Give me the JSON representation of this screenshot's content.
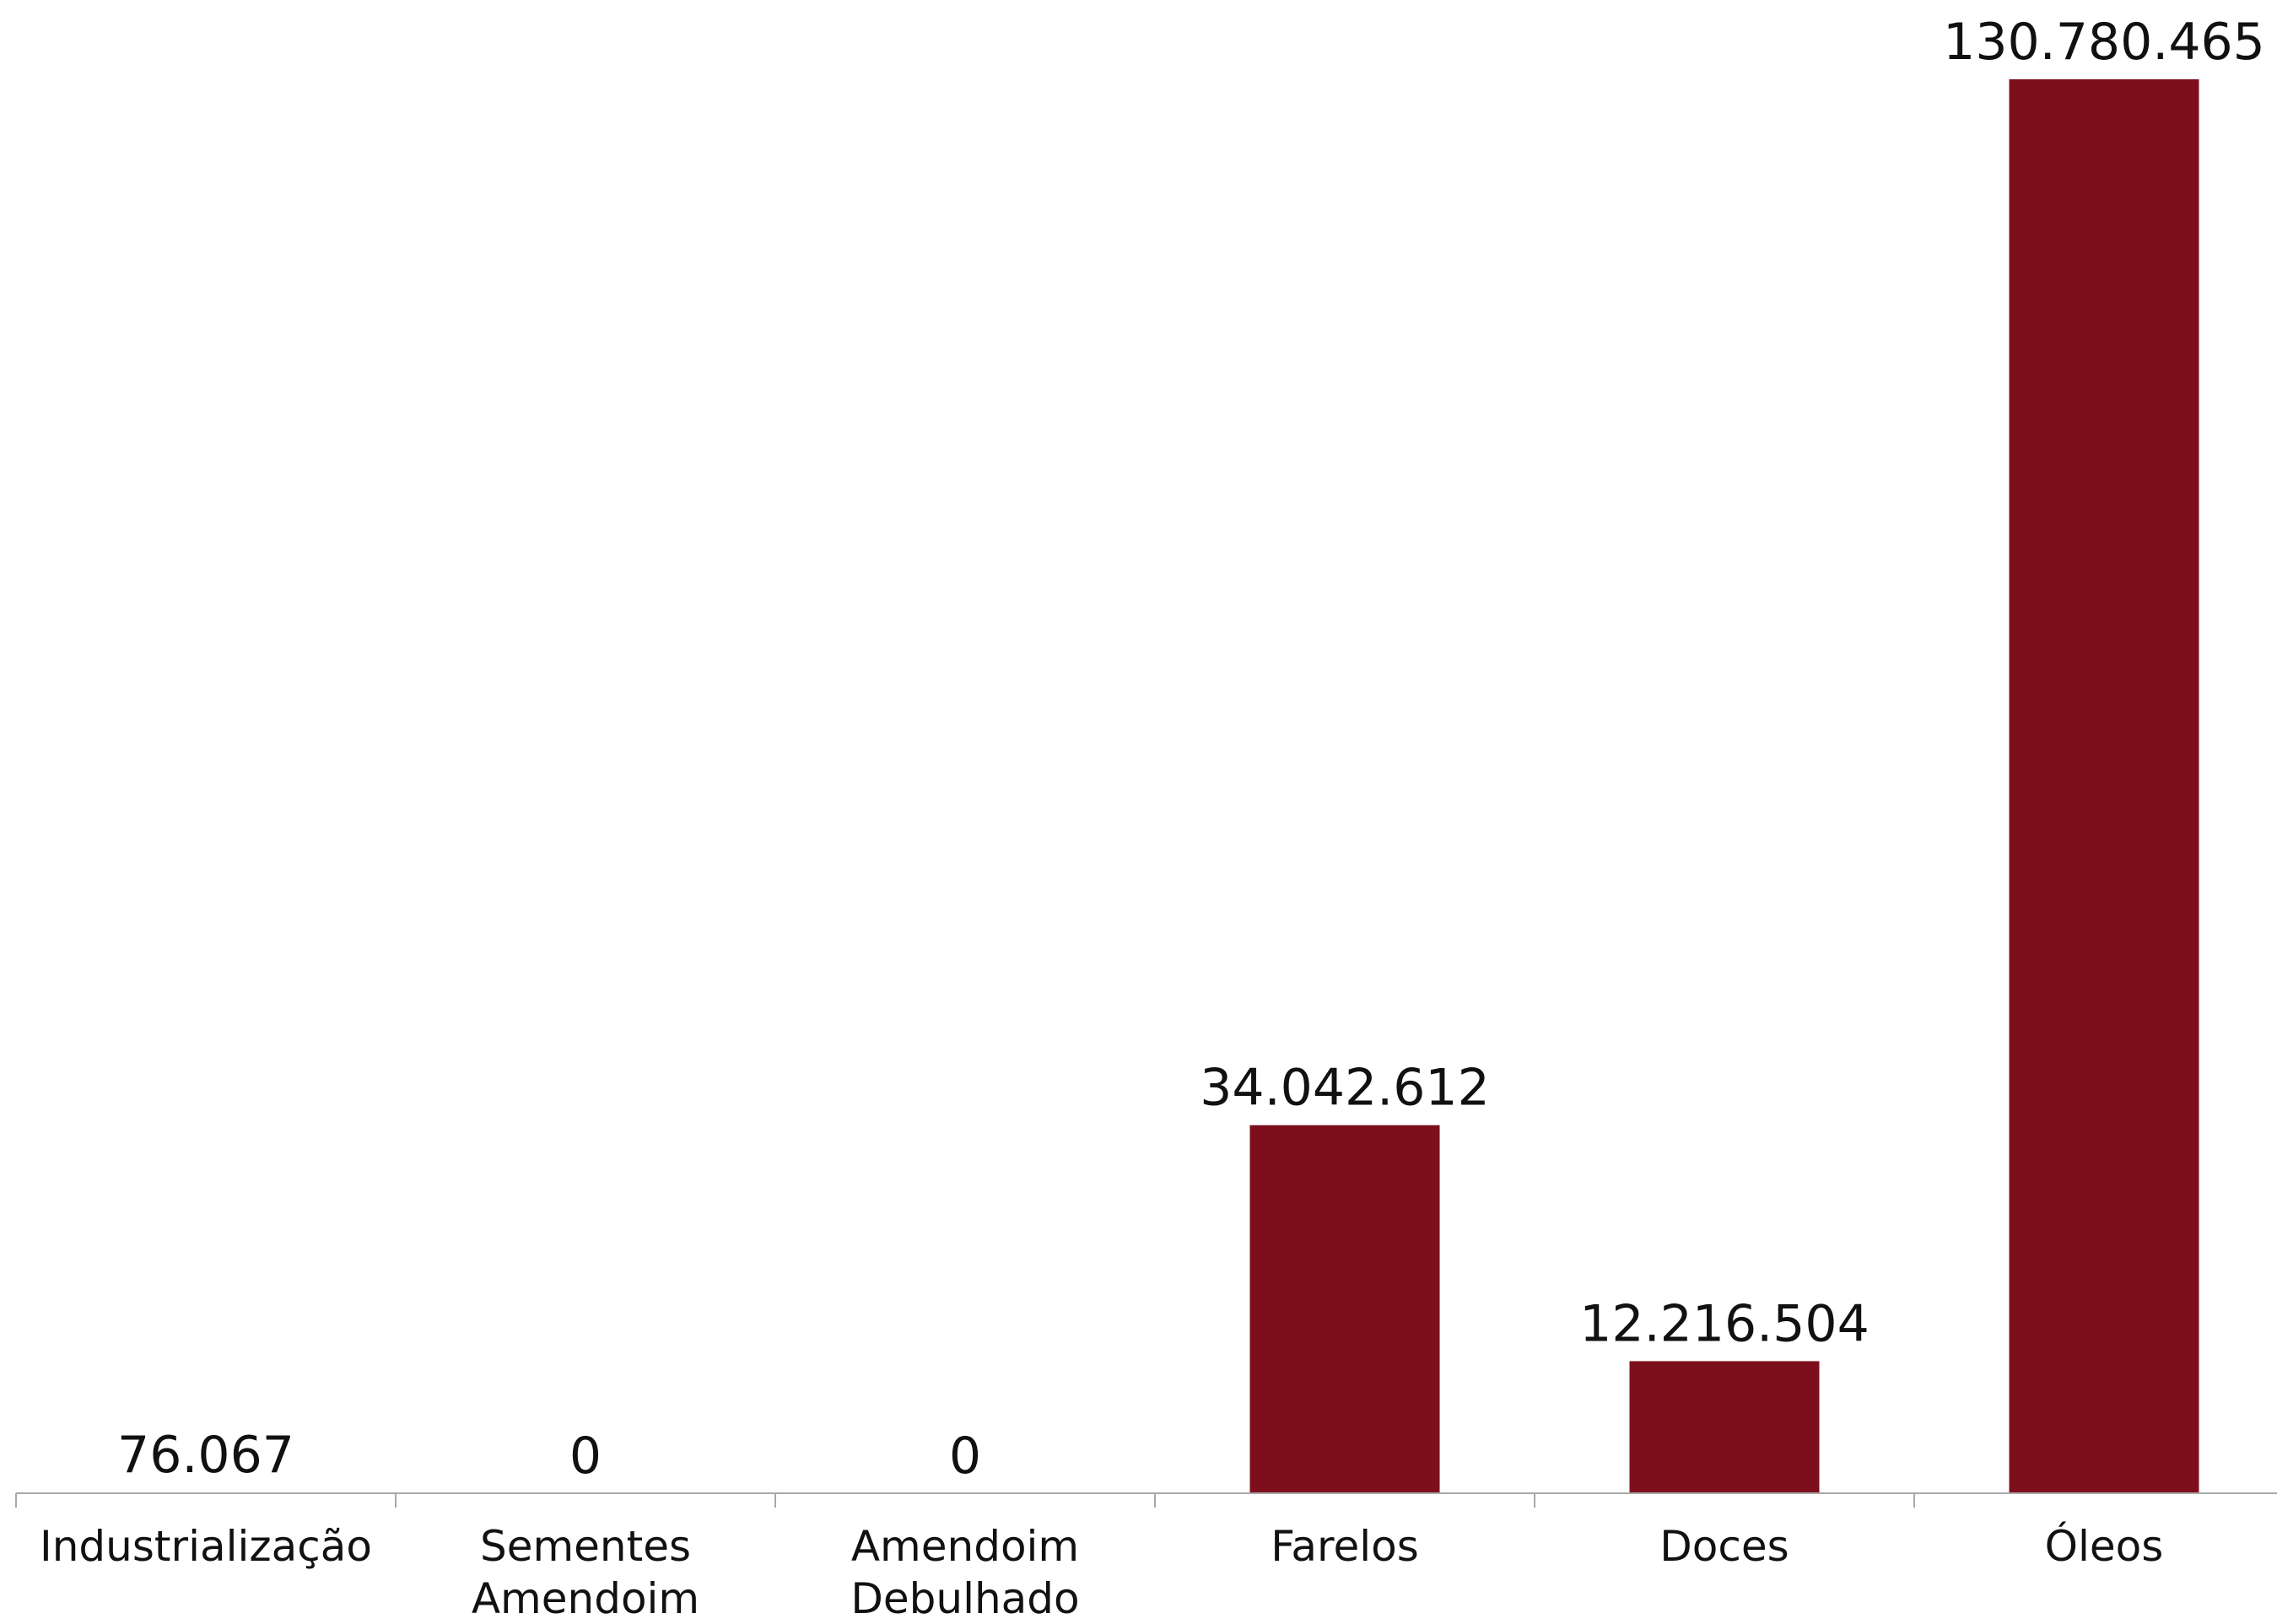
{
  "chart_data": {
    "type": "bar",
    "categories": [
      [
        "Industrialização"
      ],
      [
        "Sementes",
        "Amendoim"
      ],
      [
        "Amendoim",
        "Debulhado"
      ],
      [
        "Farelos"
      ],
      [
        "Doces"
      ],
      [
        "Óleos"
      ]
    ],
    "values": [
      76067,
      0,
      0,
      34042612,
      12216504,
      130780465
    ],
    "value_labels": [
      "76.067",
      "0",
      "0",
      "34.042.612",
      "12.216.504",
      "130.780.465"
    ],
    "title": "",
    "xlabel": "",
    "ylabel": "",
    "ylim": [
      0,
      130780465
    ],
    "grid": false,
    "legend": "none",
    "colors": {
      "bar": "#7D0F1C",
      "axis": "#A8A8A8",
      "text": "#111111"
    }
  }
}
